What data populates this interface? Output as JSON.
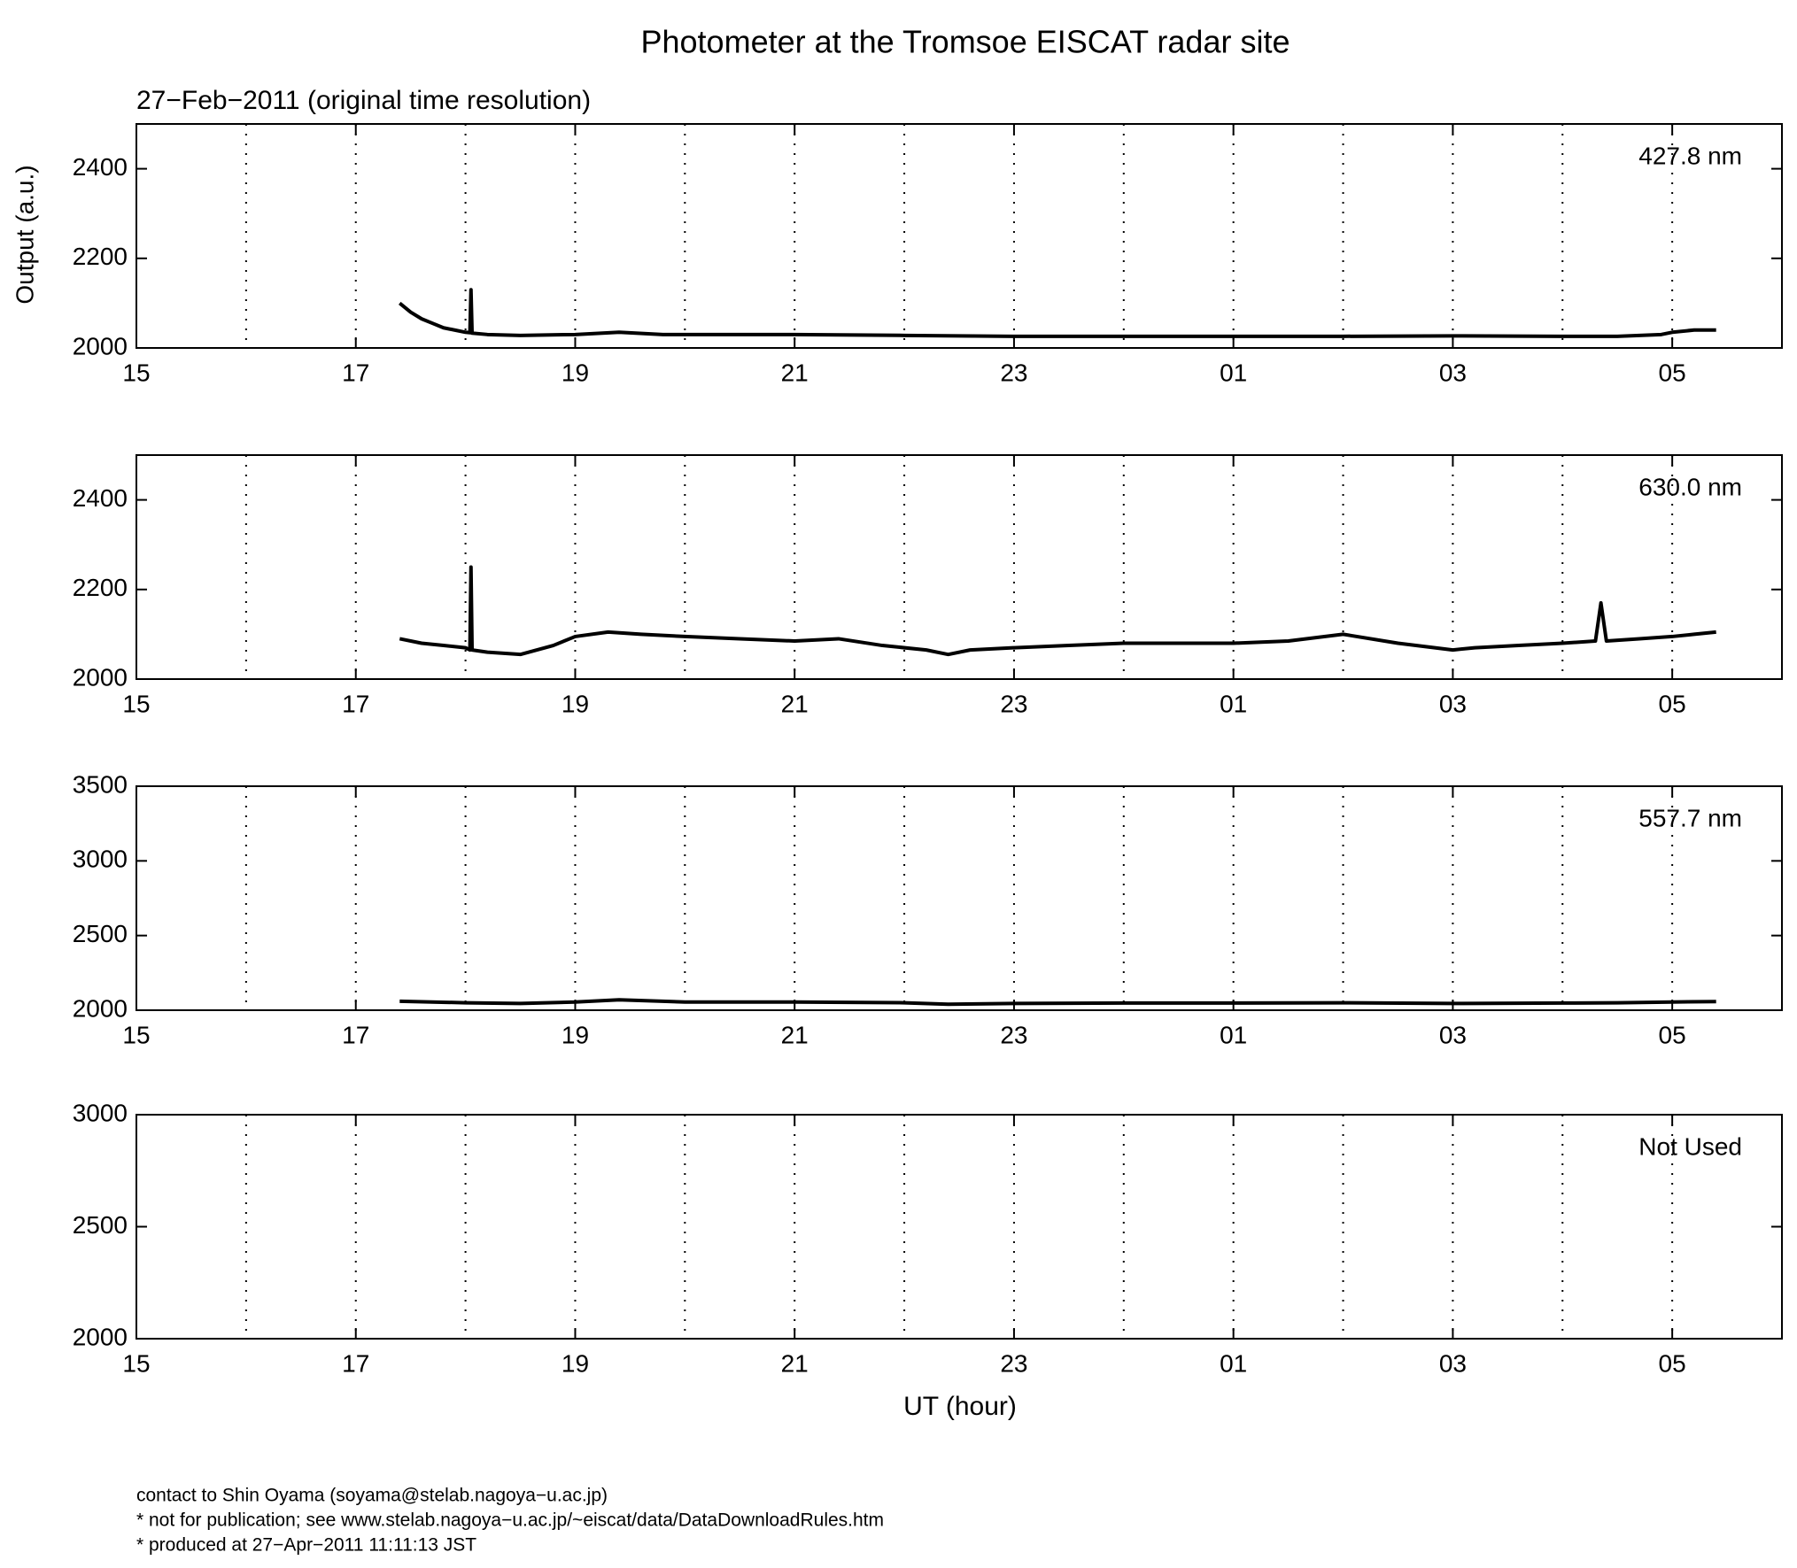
{
  "title": "Photometer at the Tromsoe EISCAT radar site",
  "subtitle": "27−Feb−2011 (original time resolution)",
  "ylabel": "Output (a.u.)",
  "xlabel": "UT (hour)",
  "footer": [
    "contact to Shin Oyama (soyama@stelab.nagoya−u.ac.jp)",
    "* not for publication; see www.stelab.nagoya−u.ac.jp/~eiscat/data/DataDownloadRules.htm",
    "* produced at 27−Apr−2011 11:11:13 JST"
  ],
  "chart_data": [
    {
      "type": "line",
      "label": "427.8 nm",
      "color": "#000000",
      "xlim": [
        15,
        30
      ],
      "xticks": [
        15,
        17,
        19,
        21,
        23,
        {
          "value": 25,
          "label": "01"
        },
        {
          "value": 27,
          "label": "03"
        },
        {
          "value": 29,
          "label": "05"
        }
      ],
      "xgrid": [
        16,
        17,
        18,
        19,
        20,
        21,
        22,
        23,
        24,
        25,
        26,
        27,
        28,
        29
      ],
      "ylim": [
        2000,
        2500
      ],
      "yticks": [
        2000,
        2200,
        2400
      ],
      "x": [
        17.4,
        17.5,
        17.6,
        17.7,
        17.8,
        17.9,
        18.0,
        18.04,
        18.05,
        18.06,
        18.2,
        18.5,
        19,
        19.4,
        19.8,
        20,
        21,
        22,
        23,
        24,
        25,
        26,
        27,
        28,
        28.5,
        28.9,
        29,
        29.2,
        29.4
      ],
      "values": [
        2100,
        2080,
        2065,
        2055,
        2045,
        2040,
        2035,
        2034,
        2130,
        2033,
        2030,
        2028,
        2030,
        2035,
        2030,
        2030,
        2030,
        2028,
        2026,
        2026,
        2026,
        2026,
        2027,
        2026,
        2026,
        2030,
        2035,
        2040,
        2040
      ]
    },
    {
      "type": "line",
      "label": "630.0 nm",
      "color": "#000000",
      "xlim": [
        15,
        30
      ],
      "xticks": [
        15,
        17,
        19,
        21,
        23,
        {
          "value": 25,
          "label": "01"
        },
        {
          "value": 27,
          "label": "03"
        },
        {
          "value": 29,
          "label": "05"
        }
      ],
      "xgrid": [
        16,
        17,
        18,
        19,
        20,
        21,
        22,
        23,
        24,
        25,
        26,
        27,
        28,
        29
      ],
      "ylim": [
        2000,
        2500
      ],
      "yticks": [
        2000,
        2200,
        2400
      ],
      "x": [
        17.4,
        17.6,
        17.8,
        18.0,
        18.04,
        18.05,
        18.06,
        18.2,
        18.5,
        18.8,
        19,
        19.3,
        19.6,
        20,
        20.5,
        21,
        21.4,
        21.8,
        22.2,
        22.4,
        22.6,
        23,
        23.5,
        24,
        24.5,
        25,
        25.5,
        26,
        26.5,
        27,
        27.2,
        27.6,
        28,
        28.3,
        28.35,
        28.4,
        28.7,
        29,
        29.2,
        29.4
      ],
      "values": [
        2090,
        2080,
        2075,
        2070,
        2065,
        2250,
        2065,
        2060,
        2055,
        2075,
        2095,
        2105,
        2100,
        2095,
        2090,
        2085,
        2090,
        2075,
        2065,
        2055,
        2065,
        2070,
        2075,
        2080,
        2080,
        2080,
        2085,
        2100,
        2080,
        2065,
        2070,
        2075,
        2080,
        2085,
        2170,
        2085,
        2090,
        2095,
        2100,
        2105
      ]
    },
    {
      "type": "line",
      "label": "557.7 nm",
      "color": "#000000",
      "xlim": [
        15,
        30
      ],
      "xticks": [
        15,
        17,
        19,
        21,
        23,
        {
          "value": 25,
          "label": "01"
        },
        {
          "value": 27,
          "label": "03"
        },
        {
          "value": 29,
          "label": "05"
        }
      ],
      "xgrid": [
        16,
        17,
        18,
        19,
        20,
        21,
        22,
        23,
        24,
        25,
        26,
        27,
        28,
        29
      ],
      "ylim": [
        2000,
        3500
      ],
      "yticks": [
        2000,
        2500,
        3000,
        3500
      ],
      "x": [
        17.4,
        18,
        18.5,
        19,
        19.4,
        20,
        21,
        22,
        22.4,
        23,
        24,
        25,
        26,
        27,
        28,
        28.5,
        29,
        29.4
      ],
      "values": [
        2060,
        2050,
        2045,
        2055,
        2070,
        2055,
        2055,
        2050,
        2040,
        2045,
        2048,
        2048,
        2050,
        2045,
        2048,
        2050,
        2055,
        2058
      ]
    },
    {
      "type": "line",
      "label": "Not Used",
      "color": "#000000",
      "xlim": [
        15,
        30
      ],
      "xticks": [
        15,
        17,
        19,
        21,
        23,
        {
          "value": 25,
          "label": "01"
        },
        {
          "value": 27,
          "label": "03"
        },
        {
          "value": 29,
          "label": "05"
        }
      ],
      "xgrid": [
        16,
        17,
        18,
        19,
        20,
        21,
        22,
        23,
        24,
        25,
        26,
        27,
        28,
        29
      ],
      "ylim": [
        2000,
        3000
      ],
      "yticks": [
        2000,
        2500,
        3000
      ],
      "x": [],
      "values": []
    }
  ]
}
